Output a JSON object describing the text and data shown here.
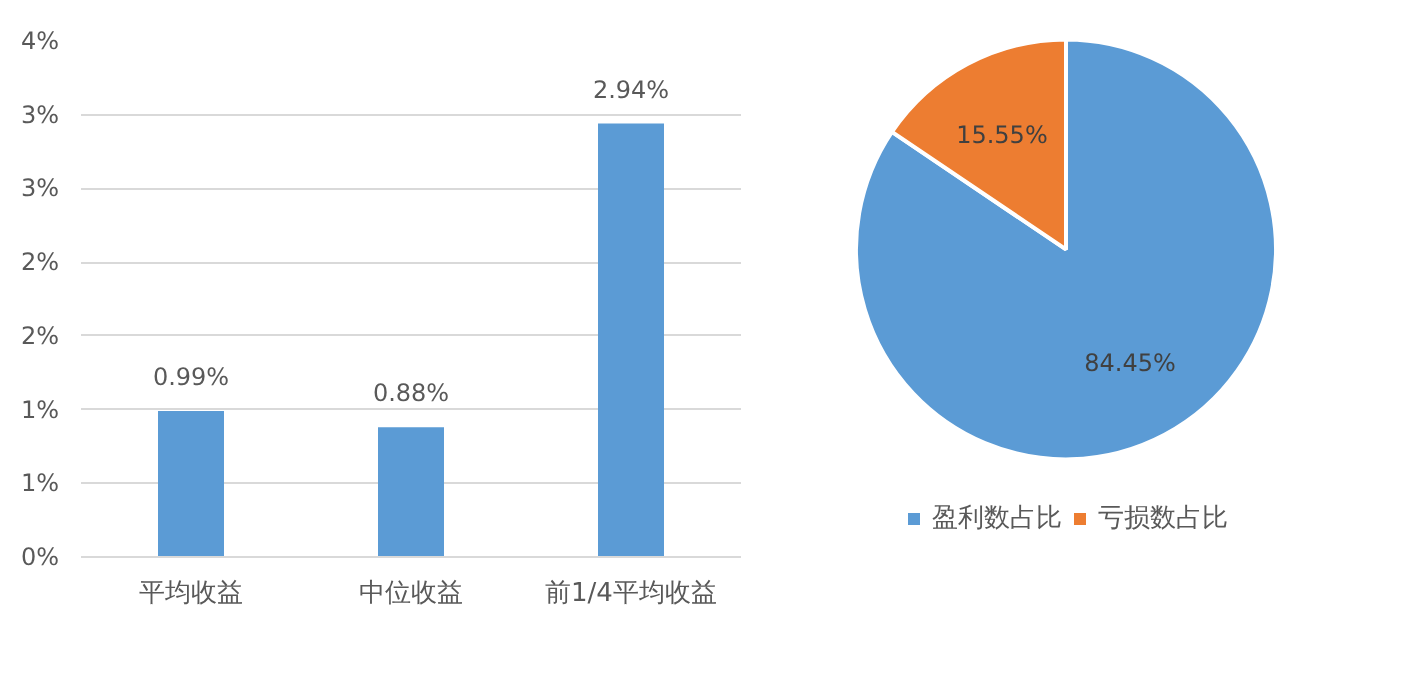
{
  "chart_data": [
    {
      "type": "bar",
      "categories": [
        "平均收益",
        "中位收益",
        "前1/4平均收益"
      ],
      "values": [
        0.99,
        0.88,
        2.94
      ],
      "color": "#5b9bd5",
      "value_labels": [
        "0.99%",
        "0.88%",
        "2.94%"
      ],
      "ylim": [
        0,
        3.5
      ],
      "yticks": [
        {
          "value": 0,
          "label": "0%"
        },
        {
          "value": 0.5,
          "label": "1%"
        },
        {
          "value": 1,
          "label": "1%"
        },
        {
          "value": 1.5,
          "label": "2%"
        },
        {
          "value": 2,
          "label": "2%"
        },
        {
          "value": 2.5,
          "label": "3%"
        },
        {
          "value": 3,
          "label": "3%"
        },
        {
          "value": 3.5,
          "label": "4%"
        }
      ],
      "grid": "y"
    },
    {
      "type": "pie",
      "categories": [
        "盈利数占比",
        "亏损数占比"
      ],
      "values": [
        84.45,
        15.55
      ],
      "colors": [
        "#5b9bd5",
        "#ed7d31"
      ],
      "value_labels": [
        "84.45%",
        "15.55%"
      ],
      "legend": "bottom"
    }
  ]
}
